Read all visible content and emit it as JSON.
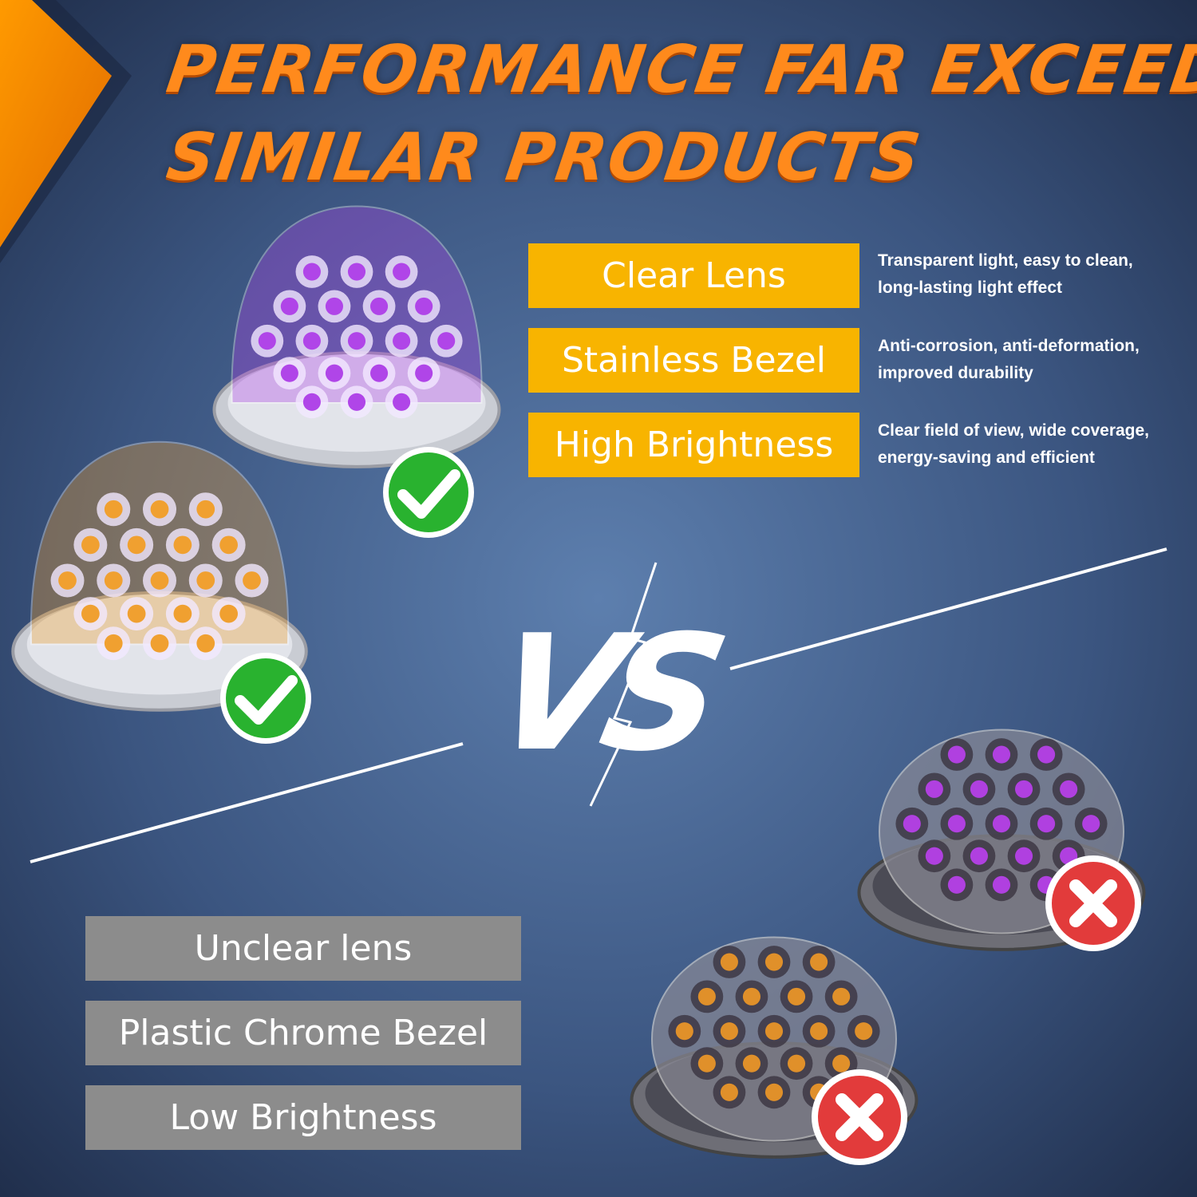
{
  "header": {
    "title_lines": [
      "PERFORMANCE FAR EXCEEDS",
      "SIMILAR PRODUCTS"
    ]
  },
  "advantages": [
    {
      "label": "Clear Lens",
      "description_lines": [
        "Transparent light, easy to clean,",
        "long-lasting light effect"
      ]
    },
    {
      "label": "Stainless Bezel",
      "description_lines": [
        "Anti-corrosion, anti-deformation,",
        "improved durability"
      ]
    },
    {
      "label": "High Brightness",
      "description_lines": [
        "Clear field of view, wide coverage,",
        "energy-saving and efficient"
      ]
    }
  ],
  "comparison": {
    "divider_text": "VS"
  },
  "disadvantages": [
    {
      "label": "Unclear lens"
    },
    {
      "label": "Plastic Chrome Bezel"
    },
    {
      "label": "Low Brightness"
    }
  ]
}
